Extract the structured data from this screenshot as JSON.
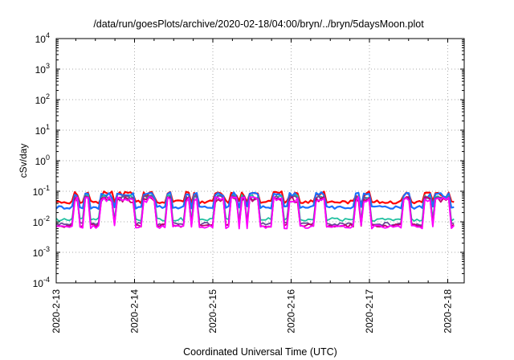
{
  "chart_data": {
    "type": "line",
    "title": "/data/run/goesPlots/archive/2020-02-18/04:00/bryn/../bryn/5daysMoon.plot",
    "xlabel": "Coordinated Universal Time (UTC)",
    "ylabel": "cSv/day",
    "yscale": "log",
    "ylim": [
      0.0001,
      10000
    ],
    "xlim": [
      "2020-2-13",
      "2020-2-18 02:00"
    ],
    "grid": true,
    "y_ticks": [
      {
        "base": "10",
        "exp": "-4"
      },
      {
        "base": "10",
        "exp": "-3"
      },
      {
        "base": "10",
        "exp": "-2"
      },
      {
        "base": "10",
        "exp": "-1"
      },
      {
        "base": "10",
        "exp": "0"
      },
      {
        "base": "10",
        "exp": "1"
      },
      {
        "base": "10",
        "exp": "2"
      },
      {
        "base": "10",
        "exp": "3"
      },
      {
        "base": "10",
        "exp": "4"
      }
    ],
    "x_ticks": [
      "2020-2-13",
      "2020-2-14",
      "2020-2-15",
      "2020-2-16",
      "2020-2-17",
      "2020-2-18"
    ],
    "series": [
      {
        "color": "#ff0000",
        "baseline": 0.045,
        "spike": 0.09,
        "phase": 0
      },
      {
        "color": "#1a6fff",
        "baseline": 0.03,
        "spike": 0.085,
        "phase": 1
      },
      {
        "color": "#20c0a0",
        "baseline": 0.012,
        "spike": 0.07,
        "phase": 2
      },
      {
        "color": "#6a4a9a",
        "baseline": 0.0085,
        "spike": 0.065,
        "phase": 3
      },
      {
        "color": "#c00070",
        "baseline": 0.0075,
        "spike": 0.06,
        "phase": 4
      },
      {
        "color": "#ff00ff",
        "baseline": 0.0068,
        "spike": 0.06,
        "phase": 5
      }
    ]
  }
}
